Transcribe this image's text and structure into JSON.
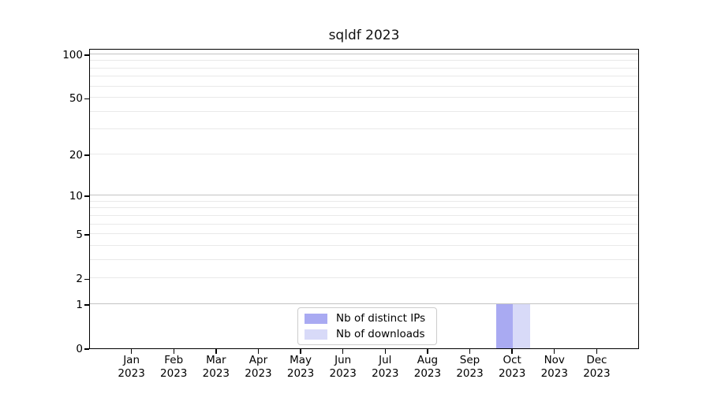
{
  "legend": {
    "items": [
      {
        "label": "Nb of distinct IPs",
        "color": "#a9aaf2"
      },
      {
        "label": "Nb of downloads",
        "color": "#d8daf8"
      }
    ]
  },
  "chart_data": {
    "type": "bar",
    "title": "sqldf 2023",
    "categories": [
      "Jan 2023",
      "Feb 2023",
      "Mar 2023",
      "Apr 2023",
      "May 2023",
      "Jun 2023",
      "Jul 2023",
      "Aug 2023",
      "Sep 2023",
      "Oct 2023",
      "Nov 2023",
      "Dec 2023"
    ],
    "series": [
      {
        "name": "Nb of distinct IPs",
        "color": "#a9aaf2",
        "values": [
          0,
          0,
          0,
          0,
          0,
          0,
          0,
          0,
          0,
          1,
          0,
          0
        ]
      },
      {
        "name": "Nb of downloads",
        "color": "#d8daf8",
        "values": [
          0,
          0,
          0,
          0,
          0,
          0,
          0,
          0,
          0,
          1,
          0,
          0
        ]
      }
    ],
    "xlabel": "",
    "ylabel": "",
    "yscale": "log1p",
    "ylim": [
      0,
      110.5
    ],
    "yticks": [
      0,
      1,
      2,
      5,
      10,
      20,
      50,
      100
    ],
    "grid_major_values": [
      1,
      10,
      100
    ],
    "grid_minor_values": [
      2,
      3,
      4,
      5,
      6,
      7,
      8,
      9,
      20,
      30,
      40,
      50,
      60,
      70,
      80,
      90
    ],
    "grid": true,
    "legend_position": "lower center inside plot"
  }
}
